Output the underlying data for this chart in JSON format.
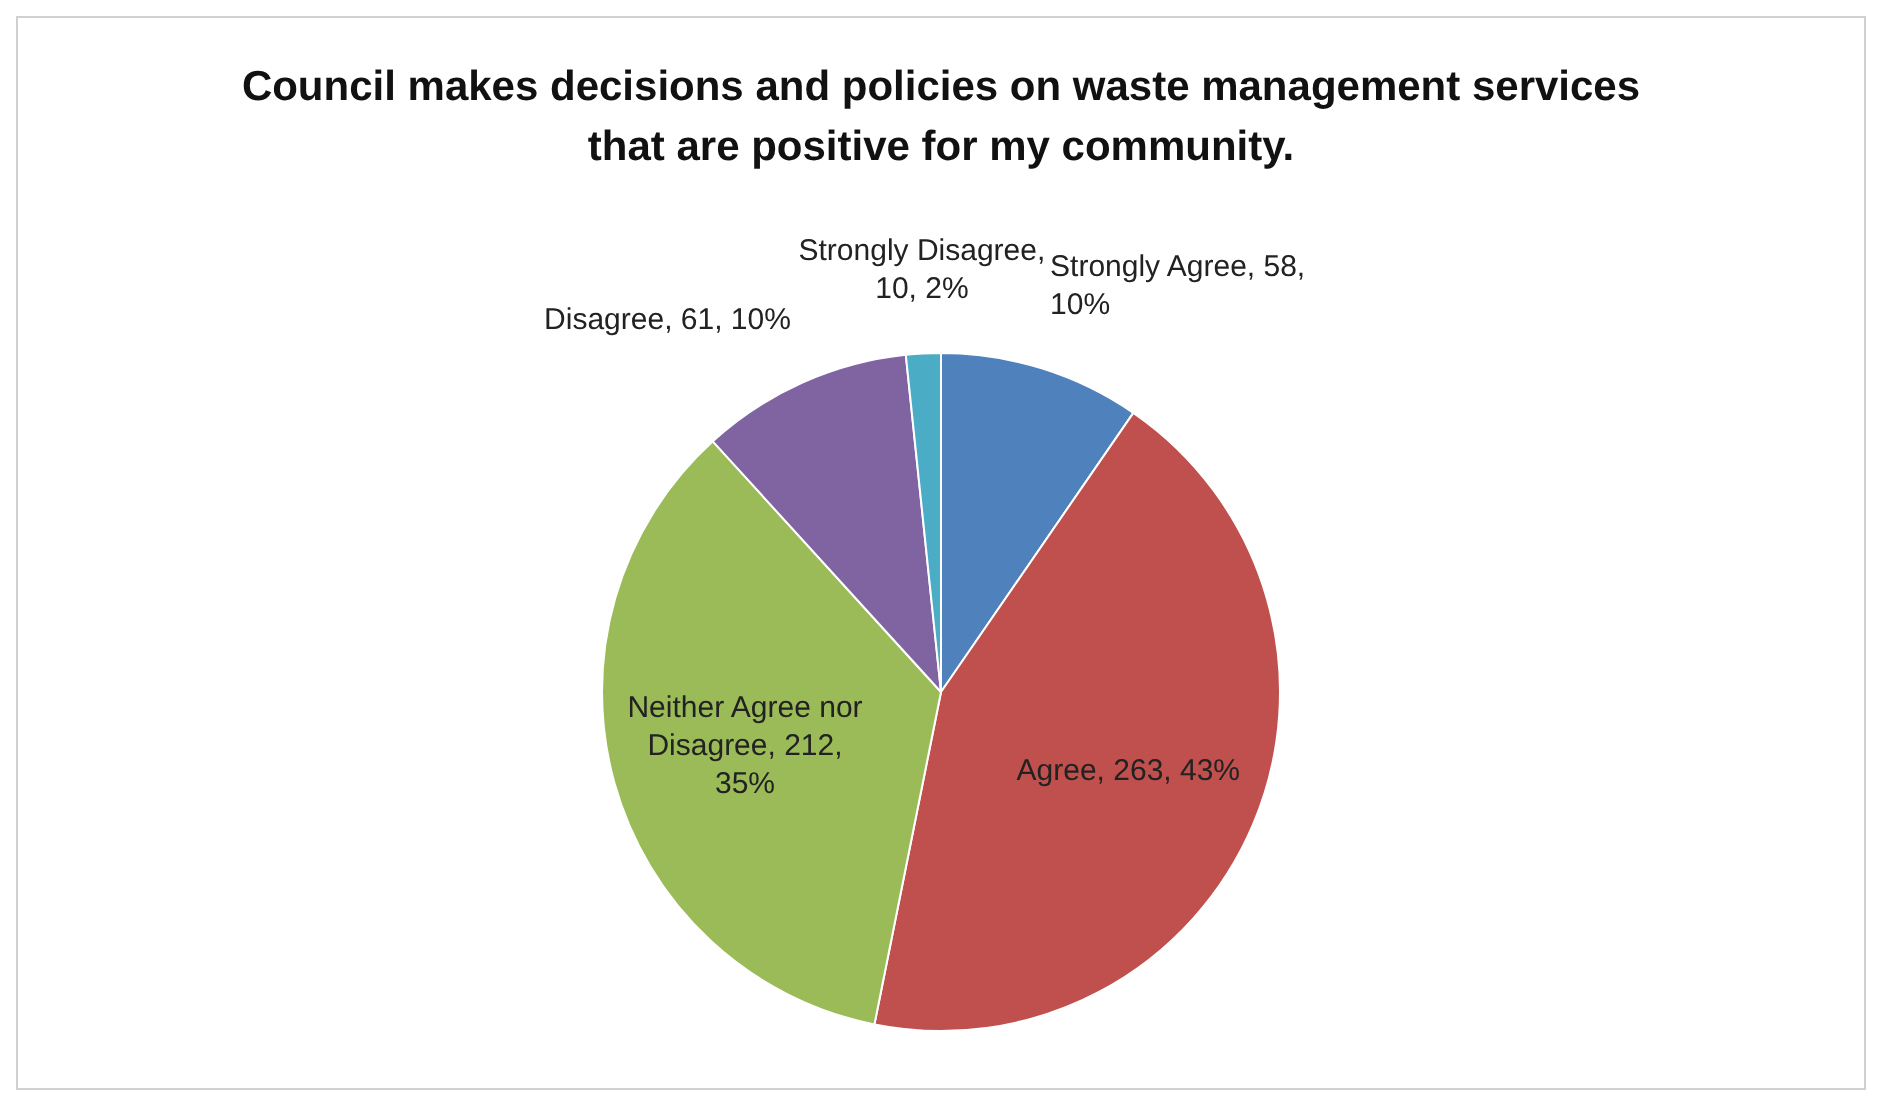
{
  "chart_data": {
    "type": "pie",
    "title": "Council makes decisions and policies on waste management services that are positive for my community.",
    "categories": [
      "Strongly Agree",
      "Agree",
      "Neither Agree nor Disagree",
      "Disagree",
      "Strongly Disagree"
    ],
    "values": [
      58,
      263,
      212,
      61,
      10
    ],
    "colors": [
      "#4f81bd",
      "#c0504d",
      "#9bbb59",
      "#8064a2",
      "#4bacc6"
    ],
    "value_labels": [
      ", 58, 10%",
      ", 263, 43%",
      ", 212, 35%",
      ", 61, 10%",
      ", 10, 2%"
    ],
    "legend": false
  }
}
